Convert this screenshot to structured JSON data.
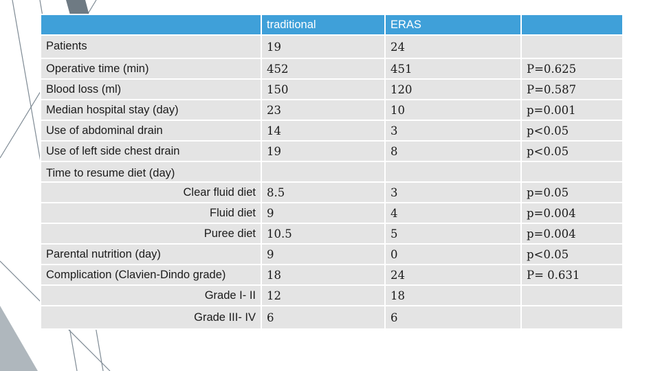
{
  "table": {
    "header": [
      "",
      "traditional",
      "ERAS",
      ""
    ],
    "rows": [
      {
        "label": "Patients",
        "traditional": "19",
        "eras": "24",
        "p": ""
      },
      {
        "label": "Operative time (min)",
        "traditional": "452",
        "eras": "451",
        "p": "P=0.625"
      },
      {
        "label": "Blood loss (ml)",
        "traditional": "150",
        "eras": "120",
        "p": "P=0.587"
      },
      {
        "label": "Median hospital stay (day)",
        "traditional": "23",
        "eras": "10",
        "p": "p=0.001"
      },
      {
        "label": "Use of abdominal drain",
        "traditional": "14",
        "eras": "3",
        "p": "p<0.05"
      },
      {
        "label": "Use of left side chest drain",
        "traditional": "19",
        "eras": "8",
        "p": "p<0.05"
      },
      {
        "label": "Time to resume diet (day)",
        "traditional": "",
        "eras": "",
        "p": ""
      },
      {
        "label": "Clear fluid diet",
        "traditional": "8.5",
        "eras": "3",
        "p": "p=0.05"
      },
      {
        "label": "Fluid diet",
        "traditional": "9",
        "eras": "4",
        "p": "p=0.004"
      },
      {
        "label": "Puree diet",
        "traditional": "10.5",
        "eras": "5",
        "p": "p=0.004"
      },
      {
        "label": "Parental nutrition (day)",
        "traditional": "9",
        "eras": "0",
        "p": "p<0.05"
      },
      {
        "label": "Complication (Clavien-Dindo grade)",
        "traditional": "18",
        "eras": "24",
        "p": "P= 0.631"
      },
      {
        "label": "Grade I- II",
        "traditional": "12",
        "eras": "18",
        "p": ""
      },
      {
        "label": "Grade III- IV",
        "traditional": "6",
        "eras": "6",
        "p": ""
      }
    ]
  },
  "colors": {
    "header_bg": "#3fa0d9",
    "cell_bg": "#e4e4e4",
    "decoration": "#6e7b86"
  }
}
